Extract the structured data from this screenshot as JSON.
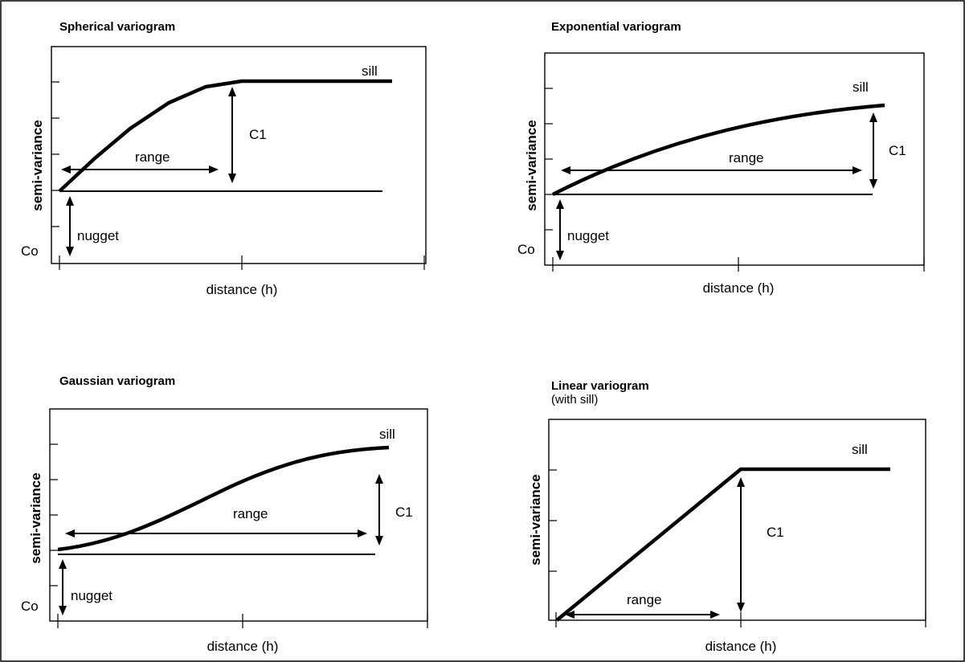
{
  "panels": [
    {
      "id": "spherical",
      "title": "Spherical variogram",
      "subtitle": "",
      "ylabel": "semi-variance",
      "xlabel": "distance (h)",
      "labels": {
        "sill": "sill",
        "c1": "C1",
        "range": "range",
        "nugget": "nugget",
        "co": "Co"
      },
      "curve_type": "spherical"
    },
    {
      "id": "exponential",
      "title": "Exponential variogram",
      "subtitle": "",
      "ylabel": "semi-variance",
      "xlabel": "distance (h)",
      "labels": {
        "sill": "sill",
        "c1": "C1",
        "range": "range",
        "nugget": "nugget",
        "co": "Co"
      },
      "curve_type": "exponential"
    },
    {
      "id": "gaussian",
      "title": "Gaussian variogram",
      "subtitle": "",
      "ylabel": "semi-variance",
      "xlabel": "distance (h)",
      "labels": {
        "sill": "sill",
        "c1": "C1",
        "range": "range",
        "nugget": "nugget",
        "co": "Co"
      },
      "curve_type": "gaussian"
    },
    {
      "id": "linear",
      "title": "Linear variogram",
      "subtitle": "(with sill)",
      "ylabel": "semi-variance",
      "xlabel": "distance (h)",
      "labels": {
        "sill": "sill",
        "c1": "C1",
        "range": "range"
      },
      "curve_type": "linear-with-sill"
    }
  ]
}
